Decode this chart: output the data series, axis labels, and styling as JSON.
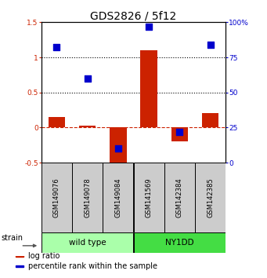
{
  "title": "GDS2826 / 5f12",
  "samples": [
    "GSM149076",
    "GSM149078",
    "GSM149084",
    "GSM141569",
    "GSM142384",
    "GSM142385"
  ],
  "log_ratios": [
    0.15,
    0.03,
    -0.5,
    1.1,
    -0.2,
    0.21
  ],
  "percentile_ranks": [
    82,
    60,
    10,
    97,
    22,
    84
  ],
  "ylim_left": [
    -0.5,
    1.5
  ],
  "ylim_right": [
    0,
    100
  ],
  "yticks_left": [
    -0.5,
    0.0,
    0.5,
    1.0,
    1.5
  ],
  "yticks_right": [
    0,
    25,
    50,
    75,
    100
  ],
  "ytick_labels_left": [
    "-0.5",
    "0",
    "0.5",
    "1",
    "1.5"
  ],
  "ytick_labels_right": [
    "0",
    "25",
    "50",
    "75",
    "100%"
  ],
  "hlines": [
    1.0,
    0.5
  ],
  "zero_line": 0.0,
  "bar_color": "#cc2200",
  "dot_color": "#0000cc",
  "dot_size": 28,
  "groups": [
    {
      "label": "wild type",
      "color": "#aaffaa",
      "start": 0,
      "end": 3
    },
    {
      "label": "NY1DD",
      "color": "#44dd44",
      "start": 3,
      "end": 6
    }
  ],
  "strain_label": "strain",
  "legend_items": [
    {
      "label": "log ratio",
      "color": "#cc2200"
    },
    {
      "label": "percentile rank within the sample",
      "color": "#0000cc"
    }
  ],
  "bar_width": 0.55,
  "title_fontsize": 10,
  "tick_fontsize": 6.5,
  "sample_fontsize": 6,
  "label_fontsize": 7,
  "group_label_fontsize": 7.5,
  "legend_fontsize": 7,
  "bg_color": "#ffffff"
}
